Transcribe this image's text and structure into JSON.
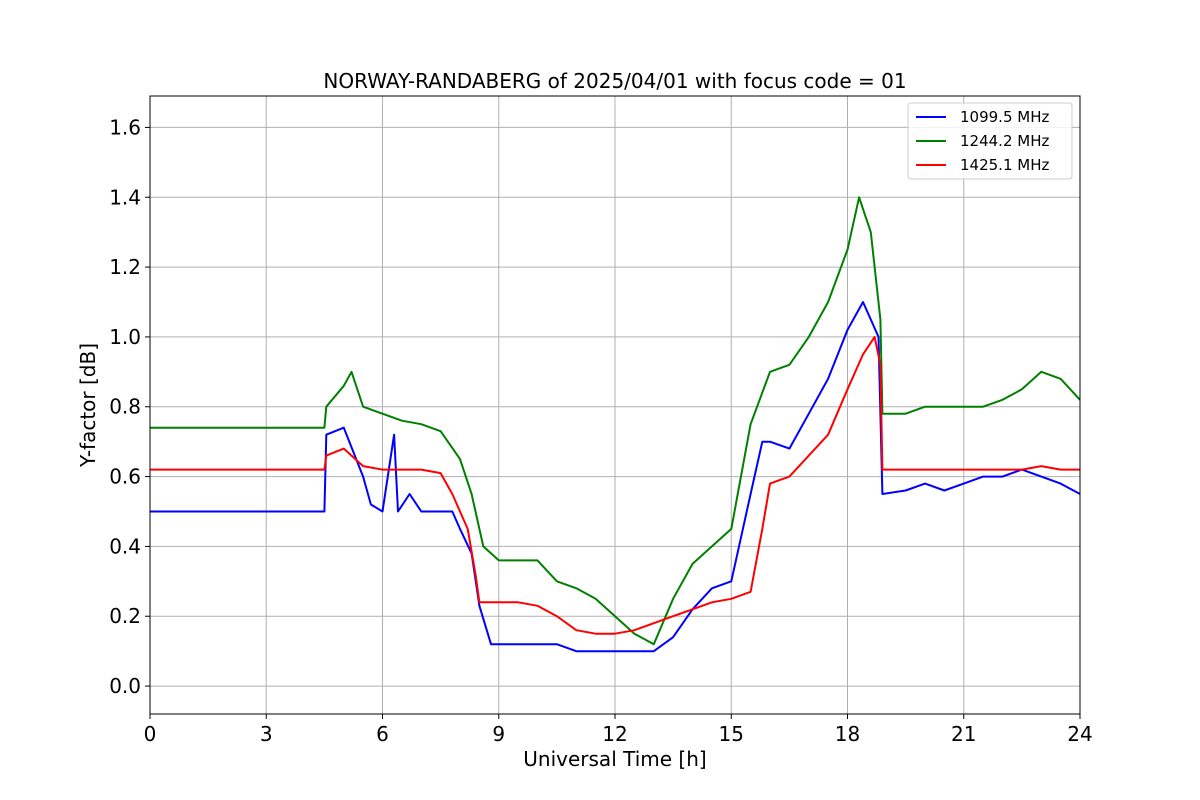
{
  "chart_data": {
    "type": "line",
    "title": "NORWAY-RANDABERG of 2025/04/01 with focus code = 01",
    "xlabel": "Universal Time [h]",
    "ylabel": "Y-factor [dB]",
    "xlim": [
      0,
      24
    ],
    "ylim": [
      -0.08,
      1.69
    ],
    "xticks": [
      0,
      3,
      6,
      9,
      12,
      15,
      18,
      21,
      24
    ],
    "xtick_labels": [
      "0",
      "3",
      "6",
      "9",
      "12",
      "15",
      "18",
      "21",
      "24"
    ],
    "yticks": [
      0.0,
      0.2,
      0.4,
      0.6,
      0.8,
      1.0,
      1.2,
      1.4,
      1.6
    ],
    "ytick_labels": [
      "0.0",
      "0.2",
      "0.4",
      "0.6",
      "0.8",
      "1.0",
      "1.2",
      "1.4",
      "1.6"
    ],
    "grid": true,
    "legend_position": "top-right",
    "series": [
      {
        "name": "1099.5 MHz",
        "color": "#0000ff",
        "x": [
          0,
          4.5,
          4.55,
          5.0,
          5.5,
          5.7,
          6.0,
          6.3,
          6.4,
          6.7,
          7.0,
          7.5,
          7.8,
          8.0,
          8.3,
          8.5,
          8.8,
          9.0,
          9.5,
          10.0,
          10.5,
          11.0,
          11.5,
          12.0,
          12.5,
          13.0,
          13.5,
          14.0,
          14.5,
          15.0,
          15.5,
          15.8,
          16.0,
          16.5,
          17.0,
          17.5,
          18.0,
          18.4,
          18.8,
          18.9,
          19.5,
          20.0,
          20.5,
          21.0,
          21.5,
          22.0,
          22.5,
          23.0,
          23.5,
          24.0
        ],
        "y": [
          0.5,
          0.5,
          0.72,
          0.74,
          0.6,
          0.52,
          0.5,
          0.72,
          0.5,
          0.55,
          0.5,
          0.5,
          0.5,
          0.45,
          0.38,
          0.23,
          0.12,
          0.12,
          0.12,
          0.12,
          0.12,
          0.1,
          0.1,
          0.1,
          0.1,
          0.1,
          0.14,
          0.22,
          0.28,
          0.3,
          0.55,
          0.7,
          0.7,
          0.68,
          0.78,
          0.88,
          1.02,
          1.1,
          1.0,
          0.55,
          0.56,
          0.58,
          0.56,
          0.58,
          0.6,
          0.6,
          0.62,
          0.6,
          0.58,
          0.55
        ]
      },
      {
        "name": "1244.2 MHz",
        "color": "#008000",
        "x": [
          0,
          4.5,
          4.55,
          5.0,
          5.2,
          5.5,
          6.0,
          6.5,
          7.0,
          7.5,
          8.0,
          8.3,
          8.6,
          9.0,
          9.5,
          10.0,
          10.5,
          11.0,
          11.5,
          12.0,
          12.5,
          13.0,
          13.5,
          14.0,
          14.5,
          15.0,
          15.5,
          16.0,
          16.5,
          17.0,
          17.5,
          18.0,
          18.3,
          18.6,
          18.85,
          18.9,
          19.5,
          20.0,
          20.5,
          21.0,
          21.5,
          22.0,
          22.5,
          23.0,
          23.5,
          24.0
        ],
        "y": [
          0.74,
          0.74,
          0.8,
          0.86,
          0.9,
          0.8,
          0.78,
          0.76,
          0.75,
          0.73,
          0.65,
          0.55,
          0.4,
          0.36,
          0.36,
          0.36,
          0.3,
          0.28,
          0.25,
          0.2,
          0.15,
          0.12,
          0.25,
          0.35,
          0.4,
          0.45,
          0.75,
          0.9,
          0.92,
          1.0,
          1.1,
          1.25,
          1.4,
          1.3,
          1.05,
          0.78,
          0.78,
          0.8,
          0.8,
          0.8,
          0.8,
          0.82,
          0.85,
          0.9,
          0.88,
          0.82
        ]
      },
      {
        "name": "1425.1 MHz",
        "color": "#ff0000",
        "x": [
          0,
          4.5,
          4.55,
          5.0,
          5.5,
          6.0,
          6.5,
          7.0,
          7.5,
          7.8,
          8.0,
          8.2,
          8.4,
          8.5,
          8.8,
          9.0,
          9.5,
          10.0,
          10.5,
          11.0,
          11.5,
          12.0,
          12.5,
          13.0,
          13.5,
          14.0,
          14.5,
          15.0,
          15.5,
          15.8,
          16.0,
          16.5,
          17.0,
          17.5,
          18.0,
          18.4,
          18.7,
          18.85,
          18.9,
          19.5,
          20.0,
          20.5,
          21.0,
          21.5,
          22.0,
          22.5,
          23.0,
          23.5,
          24.0
        ],
        "y": [
          0.62,
          0.62,
          0.66,
          0.68,
          0.63,
          0.62,
          0.62,
          0.62,
          0.61,
          0.55,
          0.5,
          0.45,
          0.32,
          0.24,
          0.24,
          0.24,
          0.24,
          0.23,
          0.2,
          0.16,
          0.15,
          0.15,
          0.16,
          0.18,
          0.2,
          0.22,
          0.24,
          0.25,
          0.27,
          0.45,
          0.58,
          0.6,
          0.66,
          0.72,
          0.85,
          0.95,
          1.0,
          0.92,
          0.62,
          0.62,
          0.62,
          0.62,
          0.62,
          0.62,
          0.62,
          0.62,
          0.63,
          0.62,
          0.62
        ]
      }
    ]
  }
}
